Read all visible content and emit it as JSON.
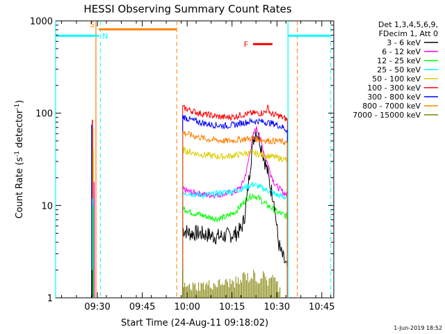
{
  "chart_data": {
    "type": "line",
    "title": "HESSI Observing Summary Count Rates",
    "xlabel": "Start Time (24-Aug-11 09:18:02)",
    "ylabel_parts": [
      "Count Rate (s",
      "-1",
      " detector",
      "-1",
      ")"
    ],
    "ylabel": "Count Rate (s-1 detector-1)",
    "y_scale": "log",
    "ylim": [
      1,
      1000
    ],
    "xlim_minutes": [
      18.03,
      111.0
    ],
    "x_ticks": [
      {
        "minute": 32,
        "label": "09:30"
      },
      {
        "minute": 47,
        "label": "09:45"
      },
      {
        "minute": 62,
        "label": "10:00"
      },
      {
        "minute": 77,
        "label": "10:15"
      },
      {
        "minute": 92,
        "label": "10:30"
      },
      {
        "minute": 107,
        "label": "10:45"
      }
    ],
    "y_ticks": [
      {
        "value": 1,
        "label": "1"
      },
      {
        "value": 10,
        "label": "10"
      },
      {
        "value": 100,
        "label": "100"
      },
      {
        "value": 1000,
        "label": "1000"
      }
    ],
    "legend_header": [
      "Det 1,3,4,5,6,9,",
      "FDecim 1, Att 0"
    ],
    "legend_placement": "right",
    "series": [
      {
        "name": "3 - 6 keV",
        "color": "#000000",
        "x": [
          60.5,
          63,
          66,
          69,
          72,
          75,
          78,
          80,
          81,
          82,
          83,
          84,
          85,
          86,
          87,
          88,
          89,
          90,
          91,
          91.5,
          92.5,
          93.5,
          94.5,
          95.5
        ],
        "y": [
          5.5,
          5,
          5,
          4.8,
          4.6,
          4.7,
          4.9,
          5.5,
          7,
          12,
          25,
          50,
          65,
          55,
          40,
          30,
          22,
          15,
          12,
          8,
          4,
          3,
          2.5,
          2
        ]
      },
      {
        "name": "6 - 12 keV",
        "color": "#ff00ff",
        "x": [
          60.5,
          63,
          66,
          69,
          72,
          75,
          78,
          80,
          81,
          82,
          83,
          84,
          85,
          86,
          87,
          88,
          89,
          90,
          91,
          92,
          93,
          94,
          95.5
        ],
        "y": [
          15,
          14,
          13.5,
          13,
          13,
          13.5,
          14,
          16,
          19,
          25,
          38,
          55,
          70,
          60,
          45,
          35,
          28,
          22,
          18,
          16,
          15,
          14,
          13
        ]
      },
      {
        "name": "12 - 25 keV",
        "color": "#00ff00",
        "x": [
          60.5,
          63,
          66,
          69,
          72,
          75,
          78,
          80,
          82,
          84,
          86,
          88,
          90,
          92,
          94,
          95.5
        ],
        "y": [
          9.5,
          8.5,
          8,
          7.5,
          7.2,
          7.5,
          8.5,
          10,
          12,
          13,
          12,
          10.5,
          9.5,
          8.5,
          8,
          7.5
        ]
      },
      {
        "name": "25 - 50 keV",
        "color": "#00ffff",
        "x": [
          60.5,
          63,
          66,
          69,
          72,
          75,
          78,
          80,
          82,
          84,
          86,
          88,
          90,
          92,
          94,
          95.5
        ],
        "y": [
          14,
          13.5,
          13,
          13,
          13.5,
          14,
          14.5,
          15,
          16,
          17,
          16,
          15,
          14,
          13,
          12.5,
          12
        ]
      },
      {
        "name": "50 - 100 keV",
        "color": "#ddcc00",
        "x": [
          60.5,
          63,
          66,
          69,
          72,
          75,
          78,
          80,
          82,
          84,
          86,
          88,
          90,
          92,
          94,
          95.5
        ],
        "y": [
          40,
          38,
          36,
          35,
          34,
          34,
          35,
          36,
          37,
          37,
          36,
          35,
          34,
          33,
          32,
          31
        ]
      },
      {
        "name": "100 - 300 keV",
        "color": "#ff0000",
        "x": [
          60.5,
          63,
          66,
          69,
          72,
          75,
          78,
          80,
          82,
          84,
          86,
          88,
          89,
          90,
          92,
          94,
          95.5
        ],
        "y": [
          115,
          108,
          100,
          96,
          92,
          90,
          92,
          96,
          98,
          100,
          100,
          102,
          115,
          98,
          95,
          90,
          85
        ]
      },
      {
        "name": "300 - 800 keV",
        "color": "#0000ff",
        "x": [
          60.5,
          63,
          66,
          69,
          72,
          75,
          78,
          80,
          82,
          84,
          86,
          88,
          90,
          92,
          94,
          95.5
        ],
        "y": [
          92,
          85,
          80,
          76,
          74,
          73,
          75,
          78,
          80,
          82,
          82,
          80,
          78,
          75,
          70,
          65
        ]
      },
      {
        "name": "800 - 7000 keV",
        "color": "#ff8000",
        "x": [
          60.5,
          63,
          66,
          69,
          72,
          75,
          78,
          80,
          82,
          84,
          86,
          88,
          90,
          92,
          94,
          95.5
        ],
        "y": [
          62,
          58,
          55,
          52,
          51,
          50,
          51,
          52,
          53,
          53,
          52,
          51,
          50,
          50,
          49,
          47
        ]
      },
      {
        "name": "7000 - 15000 keV",
        "color": "#808000",
        "x": [
          60.5,
          61,
          80,
          81,
          82,
          83,
          84,
          85,
          86,
          87,
          88,
          89,
          90,
          91,
          92,
          93
        ],
        "y": [
          1.8,
          1.3,
          1.5,
          1.8,
          1.7,
          1.6,
          1.8,
          1.7,
          1.5,
          1.8,
          1.6,
          1.5,
          1.8,
          1.6,
          1.4,
          1.3
        ]
      }
    ],
    "spikes": [
      {
        "x": 30.3,
        "y": 85,
        "color": "#ff0000"
      },
      {
        "x": 30.1,
        "y": 75,
        "color": "#0000ff"
      },
      {
        "x": 30.5,
        "y": 70,
        "color": "#ff8000"
      },
      {
        "x": 30.7,
        "y": 40,
        "color": "#ddcc00"
      },
      {
        "x": 30.9,
        "y": 18,
        "color": "#ff00ff"
      },
      {
        "x": 30.4,
        "y": 12,
        "color": "#00ffff"
      },
      {
        "x": 30.6,
        "y": 10,
        "color": "#00ff00"
      },
      {
        "x": 30.2,
        "y": 2,
        "color": "#000000"
      }
    ],
    "annotations": [
      {
        "text": "S",
        "color": "#ff8000",
        "bar_start": 32.5,
        "bar_end": 58.5,
        "y": 810
      },
      {
        "text": "N",
        "color": "#00ffff",
        "bar_start": 18.03,
        "bar_end": 32.5,
        "y": 690
      },
      {
        "text": "F",
        "color": "#ff0000",
        "bar_start": 84.0,
        "bar_end": 90.5,
        "y": 560
      }
    ],
    "night_bars": [
      {
        "start": 95.7,
        "end": 110.0,
        "y": 690,
        "color": "#00ffff"
      }
    ],
    "vlines_solid": [
      {
        "x": 18.03,
        "color": "#00ffff"
      },
      {
        "x": 31.5,
        "color": "#ff8000"
      },
      {
        "x": 95.7,
        "color": "#00ffff"
      }
    ],
    "vlines_dashed": [
      {
        "x": 33.0,
        "color": "#00ffff"
      },
      {
        "x": 58.5,
        "color": "#ff8000"
      },
      {
        "x": 98.8,
        "color": "#ff8000"
      },
      {
        "x": 110.0,
        "color": "#00ffff"
      }
    ]
  },
  "footer_date": "1-Jun-2019 18:52"
}
